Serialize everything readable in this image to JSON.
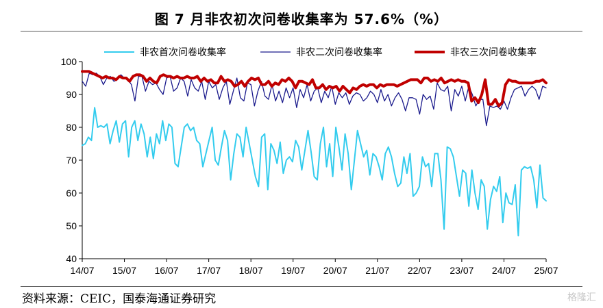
{
  "title": "图    7 月非农初次问卷收集率为 57.6%（%）",
  "source": "资料来源：CEIC，国泰海通证券研究",
  "watermark": "格隆汇",
  "chart_data": {
    "type": "line",
    "title": "图 7 月非农初次问卷收集率为 57.6%（%）",
    "x_tick_labels": [
      "14/07",
      "15/07",
      "16/07",
      "17/07",
      "18/07",
      "19/07",
      "20/07",
      "21/07",
      "22/07",
      "23/07",
      "24/07",
      "25/07"
    ],
    "x_start": "2014-07",
    "x_end": "2025-07",
    "ylim": [
      40,
      100
    ],
    "y_ticks": [
      40,
      50,
      60,
      70,
      80,
      90,
      100
    ],
    "grid": false,
    "legend_position": "top",
    "series": [
      {
        "name": "非农首次问卷收集率",
        "color": "#33CCEE",
        "stroke_width": 2,
        "values": [
          74.5,
          75.0,
          77.0,
          76.0,
          86.0,
          80.0,
          80.5,
          80.0,
          81.0,
          75.0,
          79.0,
          82.0,
          75.5,
          81.0,
          82.0,
          71.0,
          80.0,
          82.0,
          76.0,
          81.0,
          78.0,
          71.0,
          77.0,
          70.5,
          78.0,
          75.0,
          82.0,
          76.0,
          81.0,
          80.0,
          69.0,
          68.0,
          74.0,
          80.0,
          81.0,
          79.0,
          80.0,
          76.0,
          75.0,
          68.0,
          72.0,
          76.0,
          80.0,
          70.0,
          68.5,
          74.0,
          79.0,
          76.0,
          64.0,
          72.0,
          78.0,
          77.0,
          71.0,
          80.0,
          75.0,
          70.0,
          65.0,
          62.0,
          77.0,
          78.0,
          61.0,
          75.0,
          73.0,
          69.0,
          75.5,
          66.0,
          70.0,
          71.0,
          69.5,
          76.0,
          74.0,
          67.0,
          73.0,
          79.0,
          72.5,
          65.0,
          64.0,
          75.0,
          80.0,
          68.0,
          75.0,
          65.0,
          80.0,
          74.0,
          67.0,
          78.0,
          72.0,
          61.0,
          70.0,
          79.0,
          75.0,
          71.0,
          73.0,
          65.5,
          72.0,
          71.0,
          68.0,
          64.0,
          72.0,
          74.0,
          71.0,
          66.0,
          62.0,
          63.0,
          71.0,
          66.0,
          72.0,
          59.0,
          60.0,
          62.0,
          71.0,
          68.0,
          69.0,
          62.0,
          72.0,
          72.0,
          64.0,
          49.0,
          74.0,
          73.5,
          71.0,
          65.0,
          59.0,
          67.0,
          66.0,
          56.0,
          67.0,
          60.0,
          55.0,
          64.0,
          62.0,
          49.0,
          58.0,
          62.0,
          60.5,
          65.0,
          51.0,
          60.0,
          57.0,
          56.5,
          62.5,
          47.0,
          67.0,
          68.0,
          67.5,
          68.0,
          64.0,
          55.5,
          68.5,
          58.5,
          57.6
        ]
      },
      {
        "name": "非农二次问卷收集率",
        "color": "#1A1A8C",
        "stroke_width": 1.3,
        "values": [
          94.0,
          92.5,
          96.5,
          96.0,
          96.5,
          95.5,
          93.0,
          95.0,
          95.5,
          94.0,
          94.5,
          96.0,
          95.0,
          94.5,
          93.0,
          88.0,
          95.5,
          95.5,
          91.0,
          94.0,
          93.0,
          93.5,
          91.5,
          90.0,
          95.0,
          95.5,
          91.0,
          92.0,
          95.0,
          94.0,
          89.5,
          94.5,
          92.0,
          91.0,
          94.0,
          88.5,
          94.0,
          92.0,
          93.0,
          88.5,
          92.0,
          94.0,
          87.0,
          91.0,
          95.0,
          89.0,
          88.0,
          93.5,
          93.0,
          86.5,
          91.0,
          94.0,
          89.5,
          88.5,
          93.0,
          88.0,
          91.0,
          87.5,
          92.0,
          89.0,
          92.0,
          86.0,
          91.5,
          89.0,
          93.0,
          88.0,
          91.0,
          92.0,
          87.5,
          91.0,
          89.0,
          92.5,
          87.0,
          90.5,
          89.0,
          90.5,
          87.0,
          89.5,
          90.5,
          90.0,
          88.0,
          89.0,
          91.0,
          90.0,
          87.5,
          91.5,
          88.0,
          90.0,
          86.5,
          89.0,
          90.5,
          88.5,
          85.0,
          89.0,
          89.0,
          88.5,
          84.0,
          90.0,
          88.5,
          89.5,
          85.5,
          93.5,
          91.5,
          91.0,
          92.5,
          85.0,
          91.5,
          89.5,
          92.5,
          88.0,
          92.5,
          90.0,
          86.5,
          88.5,
          88.5,
          80.5,
          86.5,
          86.0,
          86.5,
          85.5,
          88.0,
          85.5,
          89.0,
          91.5,
          92.0,
          92.5,
          89.5,
          91.5,
          92.5,
          91.5,
          88.5,
          92.5,
          92.0
        ]
      },
      {
        "name": "非农三次问卷收集率",
        "color": "#C00000",
        "stroke_width": 4,
        "values": [
          97.0,
          97.0,
          97.0,
          96.5,
          96.0,
          95.5,
          95.0,
          95.5,
          95.0,
          95.0,
          94.5,
          95.5,
          95.0,
          95.0,
          94.0,
          95.5,
          96.0,
          96.0,
          95.5,
          94.0,
          95.0,
          94.0,
          93.5,
          95.5,
          96.0,
          95.5,
          95.5,
          95.0,
          95.5,
          95.0,
          95.0,
          95.5,
          95.0,
          95.0,
          95.5,
          94.0,
          95.0,
          94.0,
          94.5,
          93.5,
          93.5,
          95.5,
          94.0,
          94.5,
          94.0,
          92.5,
          93.0,
          94.0,
          92.5,
          94.0,
          95.0,
          94.5,
          95.0,
          93.0,
          93.0,
          94.0,
          92.5,
          93.5,
          93.0,
          94.5,
          94.0,
          95.0,
          94.0,
          92.0,
          94.0,
          94.0,
          93.5,
          93.0,
          94.5,
          92.0,
          92.0,
          93.0,
          91.5,
          92.5,
          92.0,
          92.5,
          91.0,
          92.5,
          91.5,
          90.5,
          92.0,
          91.5,
          92.5,
          93.0,
          92.5,
          93.0,
          93.0,
          92.0,
          93.0,
          92.5,
          93.0,
          93.0,
          93.0,
          92.5,
          93.0,
          93.5,
          94.0,
          94.5,
          94.5,
          94.5,
          93.5,
          95.0,
          95.0,
          94.0,
          94.5,
          94.0,
          95.0,
          93.5,
          94.0,
          94.5,
          94.0,
          94.5,
          94.0,
          94.0,
          93.5,
          88.0,
          89.0,
          87.5,
          90.0,
          94.5,
          87.0,
          87.0,
          88.5,
          86.5,
          87.5,
          93.0,
          94.5,
          94.0,
          94.0,
          93.5,
          93.5,
          93.5,
          93.5,
          93.5,
          94.0,
          94.0,
          94.5,
          93.5
        ]
      }
    ]
  }
}
